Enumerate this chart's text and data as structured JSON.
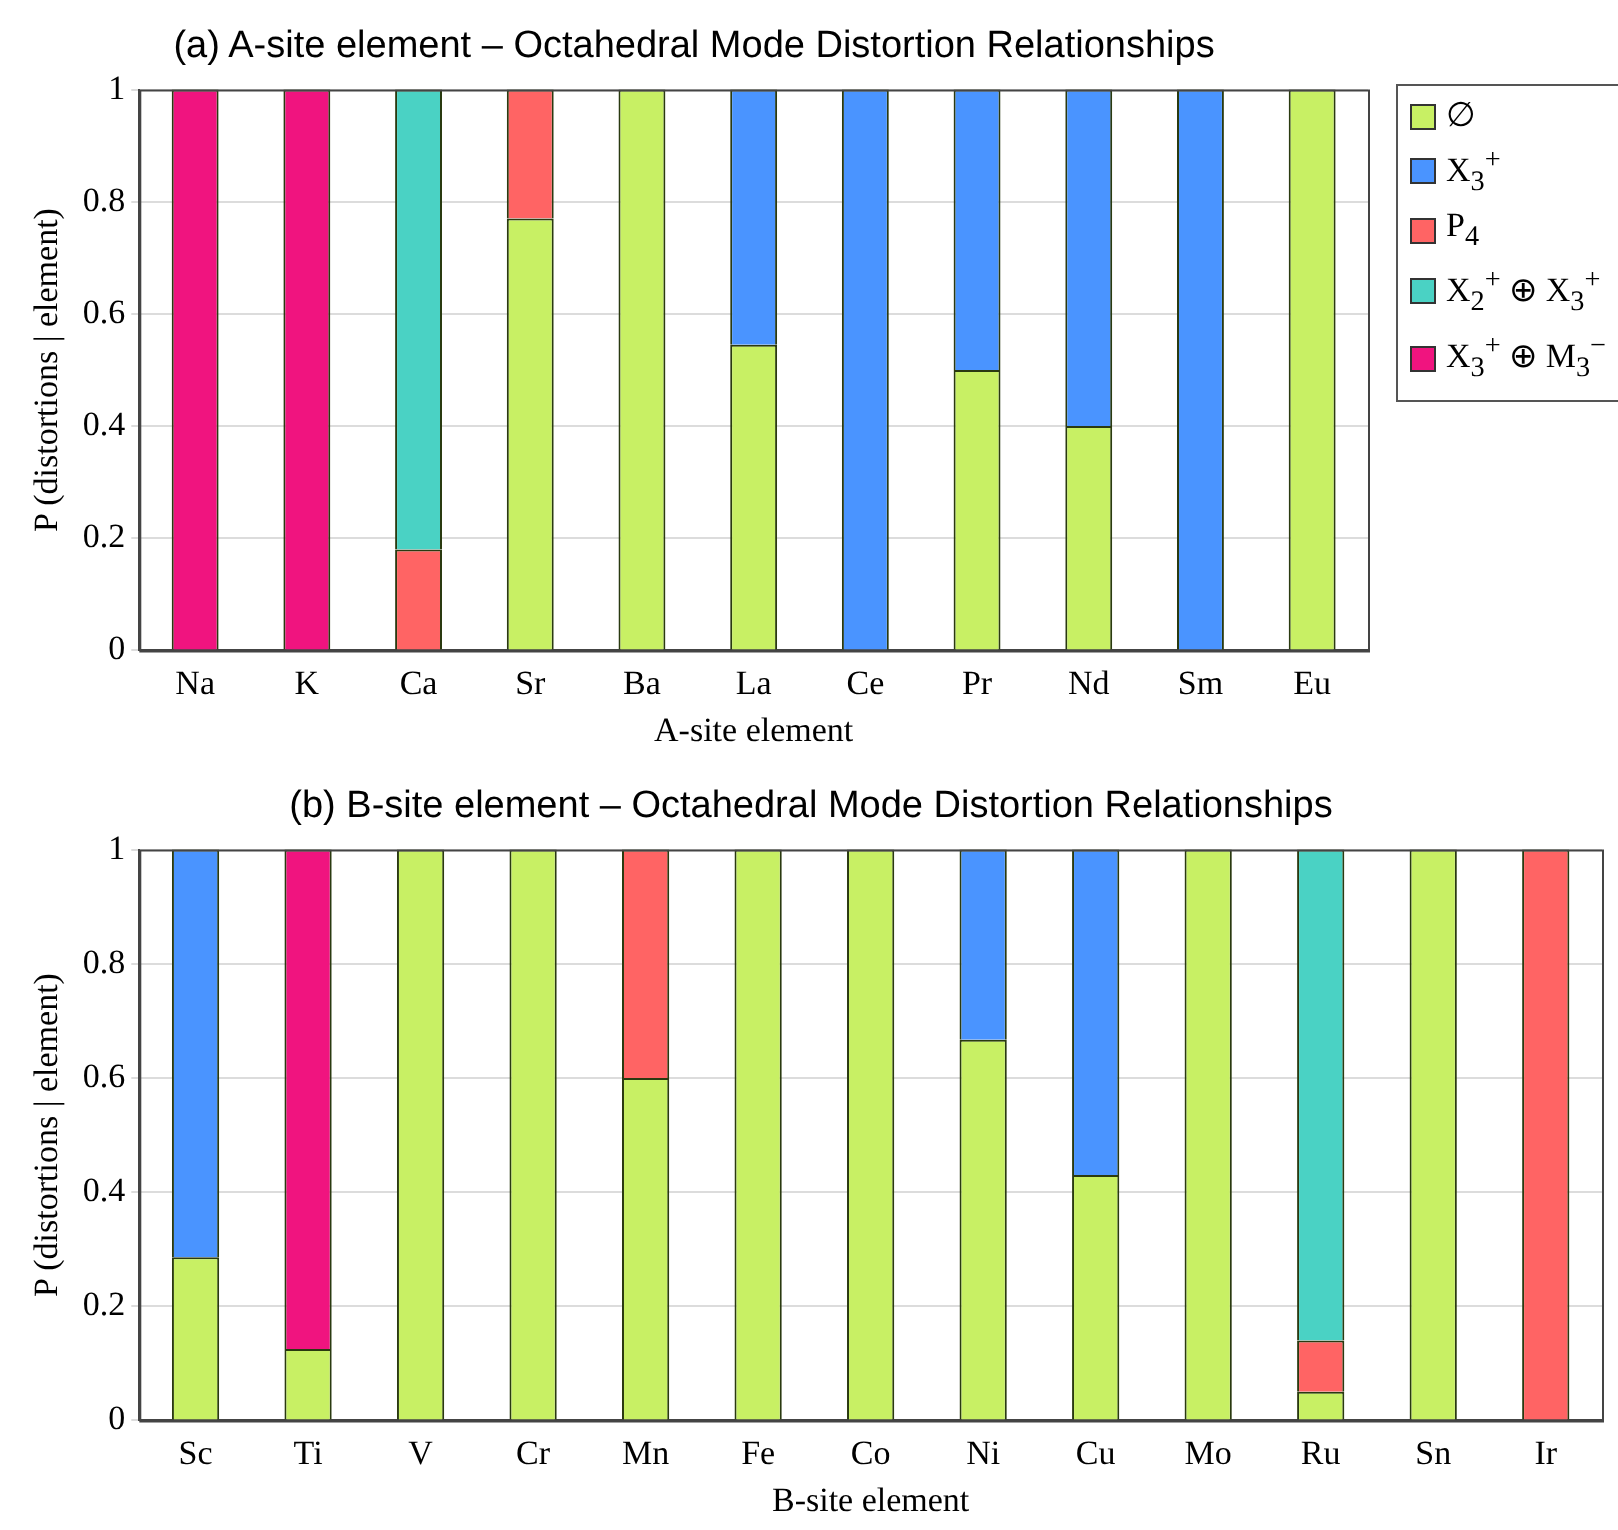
{
  "chart_data": [
    {
      "type": "bar",
      "title": "(a) A-site element – Octahedral Mode Distortion Relationships",
      "xlabel": "A-site element",
      "ylabel": "P (distortions | element)",
      "categories": [
        "Na",
        "K",
        "Ca",
        "Sr",
        "Ba",
        "La",
        "Ce",
        "Pr",
        "Nd",
        "Sm",
        "Eu"
      ],
      "stacked": true,
      "ylim": [
        0,
        1
      ],
      "yticks": [
        0,
        0.2,
        0.4,
        0.6,
        0.8,
        1
      ],
      "grid": "y",
      "legend": "right",
      "series": [
        {
          "name": "∅",
          "color": "#c8f064",
          "values": [
            0,
            0,
            0,
            0.77,
            1,
            0.545,
            0,
            0.5,
            0.4,
            0,
            1
          ]
        },
        {
          "name": "X$_{3}$$^{+}$",
          "color": "#4a94ff",
          "values": [
            0,
            0,
            0,
            0,
            0,
            0.455,
            1,
            0.5,
            0.6,
            1,
            0
          ]
        },
        {
          "name": "P$_{4}$",
          "color": "#ff6464",
          "values": [
            0,
            0,
            0.18,
            0.23,
            0,
            0,
            0,
            0,
            0,
            0,
            0
          ]
        },
        {
          "name": "X$_{2}$$^{+}$ ⊕ X$_{3}$$^{+}$",
          "color": "#4ad2c4",
          "values": [
            0,
            0,
            0.82,
            0,
            0,
            0,
            0,
            0,
            0,
            0,
            0
          ]
        },
        {
          "name": "X$_{3}$$^{+}$ ⊕ M$_{3}$$^{−}$",
          "color": "#f0147f",
          "values": [
            1,
            1,
            0,
            0,
            0,
            0,
            0,
            0,
            0,
            0,
            0
          ]
        }
      ]
    },
    {
      "type": "bar",
      "title": "(b) B-site element – Octahedral Mode Distortion Relationships",
      "xlabel": "B-site element",
      "ylabel": "P (distortions | element)",
      "categories": [
        "Sc",
        "Ti",
        "V",
        "Cr",
        "Mn",
        "Fe",
        "Co",
        "Ni",
        "Cu",
        "Mo",
        "Ru",
        "Sn",
        "Ir"
      ],
      "stacked": true,
      "ylim": [
        0,
        1
      ],
      "yticks": [
        0,
        0.2,
        0.4,
        0.6,
        0.8,
        1
      ],
      "grid": "y",
      "legend": false,
      "series": [
        {
          "color": "#c8f064",
          "values": [
            0.286,
            0.125,
            1,
            1,
            0.6,
            1,
            1,
            0.667,
            0.43,
            1,
            0.05,
            1,
            0
          ]
        },
        {
          "color": "#4a94ff",
          "values": [
            0.714,
            0,
            0,
            0,
            0,
            0,
            0,
            0.333,
            0.57,
            0,
            0,
            0,
            0
          ]
        },
        {
          "color": "#ff6464",
          "values": [
            0,
            0,
            0,
            0,
            0.4,
            0,
            0,
            0,
            0,
            0,
            0.09,
            0,
            1
          ]
        },
        {
          "color": "#4ad2c4",
          "values": [
            0,
            0,
            0,
            0,
            0,
            0,
            0,
            0,
            0,
            0,
            0.86,
            0,
            0
          ]
        },
        {
          "color": "#f0147f",
          "values": [
            0,
            0.875,
            0,
            0,
            0,
            0,
            0,
            0,
            0,
            0,
            0,
            0,
            0
          ]
        }
      ]
    }
  ]
}
